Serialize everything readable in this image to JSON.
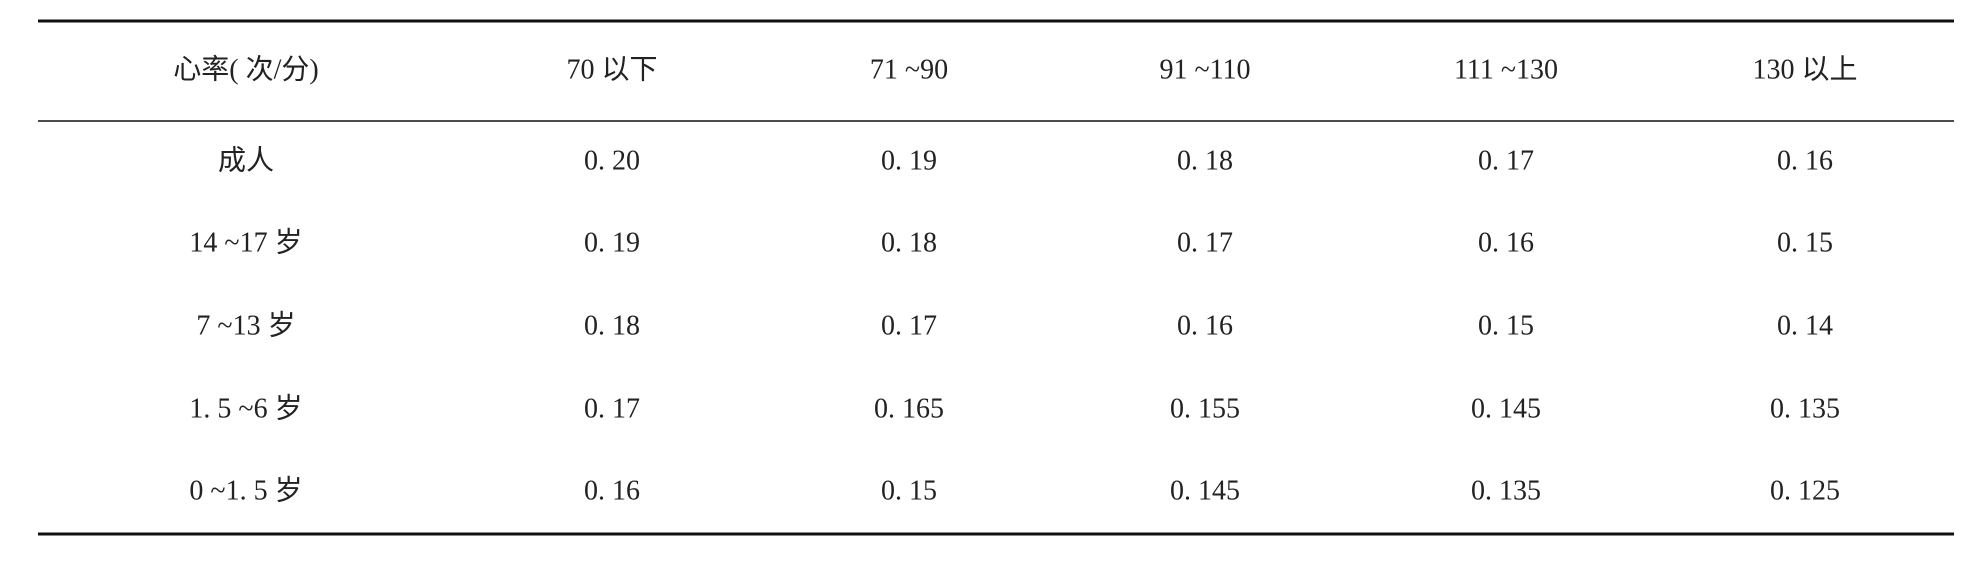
{
  "table": {
    "header": [
      "心率( 次/分)",
      "70 以下",
      "71 ~90",
      "91 ~110",
      "111 ~130",
      "130 以上"
    ],
    "rows": [
      [
        "成人",
        "0. 20",
        "0. 19",
        "0. 18",
        "0. 17",
        "0. 16"
      ],
      [
        "14 ~17 岁",
        "0. 19",
        "0. 18",
        "0. 17",
        "0. 16",
        "0. 15"
      ],
      [
        "7 ~13 岁",
        "0. 18",
        "0. 17",
        "0. 16",
        "0. 15",
        "0. 14"
      ],
      [
        "1. 5 ~6 岁",
        "0. 17",
        "0. 165",
        "0. 155",
        "0. 145",
        "0. 135"
      ],
      [
        "0 ~1. 5 岁",
        "0. 16",
        "0. 15",
        "0. 145",
        "0. 135",
        "0. 125"
      ]
    ]
  }
}
